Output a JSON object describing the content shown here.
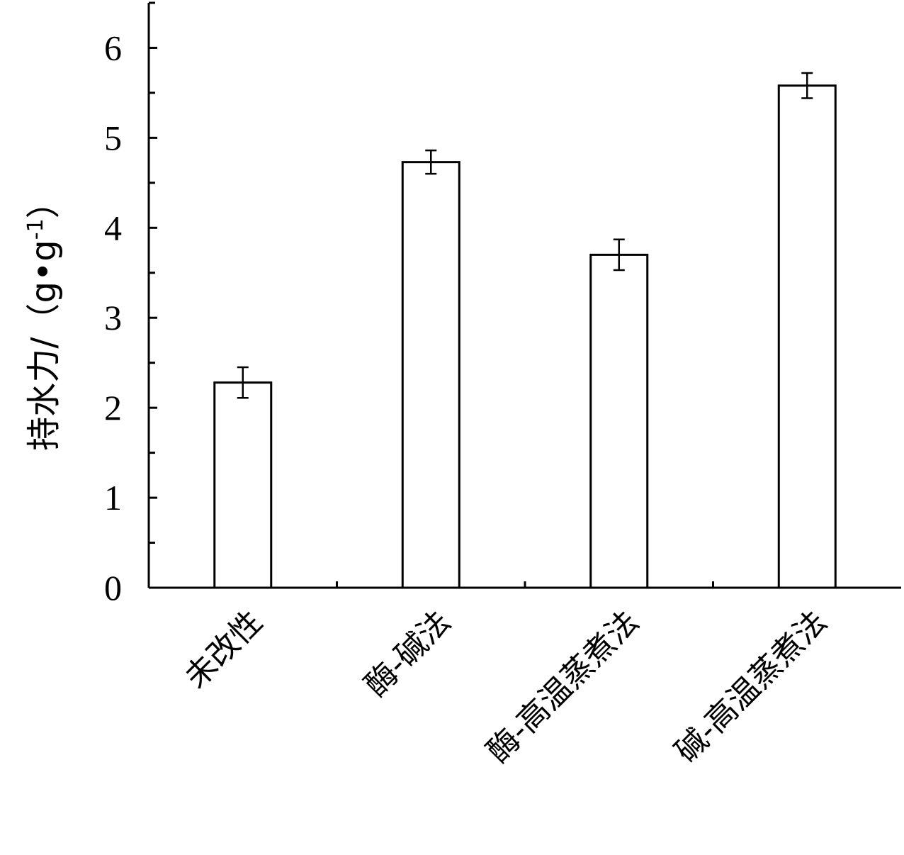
{
  "chart_data": {
    "type": "bar",
    "categories": [
      "未改性",
      "酶-碱法",
      "酶-高温蒸煮法",
      "碱-高温蒸煮法"
    ],
    "values": [
      2.28,
      4.73,
      3.7,
      5.58
    ],
    "errors": [
      0.17,
      0.13,
      0.17,
      0.14
    ],
    "ylabel": "持水力/（g•g",
    "ylabel_superscript": "-1",
    "ylabel_close": "）",
    "ylim": [
      0,
      6.5
    ],
    "yticks": [
      "0",
      "1",
      "2",
      "3",
      "4",
      "5",
      "6"
    ],
    "grid": false,
    "legend": "none",
    "bar_fill": "#ffffff",
    "bar_stroke": "#000000"
  }
}
